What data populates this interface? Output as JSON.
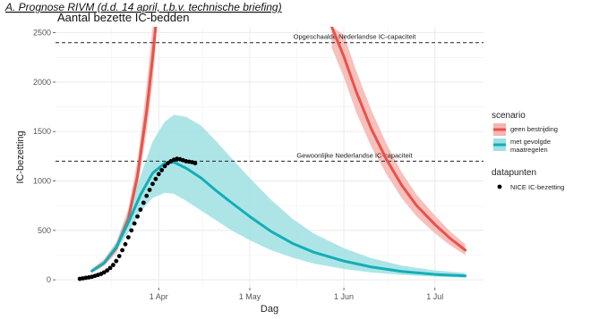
{
  "header": {
    "text": "A.   Prognose RIVM (d.d. 14 april, t.b.v. technische briefing)"
  },
  "chart_data": {
    "type": "line",
    "title": "Aantal bezette IC-bedden",
    "xlabel": "Dag",
    "ylabel": "IC-bezetting",
    "xlim": [
      "2020-02-27",
      "2020-07-17"
    ],
    "ylim": [
      -80,
      2560
    ],
    "x_ticks": [
      {
        "date": "2020-04-01",
        "label": "1 Apr"
      },
      {
        "date": "2020-05-01",
        "label": "1 May"
      },
      {
        "date": "2020-06-01",
        "label": "1 Jun"
      },
      {
        "date": "2020-07-01",
        "label": "1 Jul"
      }
    ],
    "y_ticks": [
      0,
      500,
      1000,
      1500,
      2000,
      2500
    ],
    "grid": true,
    "reference_lines": [
      {
        "y": 2400,
        "label": "Opgeschaalde Nederlandse IC-capaciteit"
      },
      {
        "y": 1200,
        "label": "Gewoonlijke Nederlandse IC-capaciteit"
      }
    ],
    "legend": {
      "placement": "right",
      "groups": [
        {
          "title": "scenario",
          "entries": [
            {
              "label": "geen bestrijding",
              "color": "#e8524a",
              "band": "#f6b5b0"
            },
            {
              "label": "met gevolgde maatregelen",
              "color": "#13aeb6",
              "band": "#9fe0e3"
            }
          ]
        },
        {
          "title": "datapunten",
          "entries": [
            {
              "label": "NICE IC-bezetting",
              "color": "#000000"
            }
          ]
        }
      ]
    },
    "series": [
      {
        "name": "geen bestrijding",
        "color": "#e8524a",
        "band_color": "#f6b5b0",
        "x": [
          "2020-03-10",
          "2020-03-14",
          "2020-03-18",
          "2020-03-22",
          "2020-03-25",
          "2020-03-28",
          "2020-03-30",
          "2020-03-31"
        ],
        "values": [
          90,
          170,
          320,
          620,
          1050,
          1700,
          2250,
          2560
        ],
        "lower": [
          70,
          140,
          270,
          540,
          920,
          1500,
          2000,
          2350
        ],
        "upper": [
          110,
          210,
          380,
          720,
          1200,
          1950,
          2560,
          2560
        ]
      },
      {
        "name": "geen bestrijding",
        "color": "#e8524a",
        "band_color": "#f6b5b0",
        "x": [
          "2020-05-28",
          "2020-06-01",
          "2020-06-05",
          "2020-06-10",
          "2020-06-15",
          "2020-06-20",
          "2020-06-25",
          "2020-07-01",
          "2020-07-06",
          "2020-07-11"
        ],
        "values": [
          2560,
          2260,
          1910,
          1530,
          1220,
          960,
          750,
          560,
          420,
          300
        ],
        "lower": [
          2350,
          2050,
          1700,
          1350,
          1070,
          830,
          640,
          470,
          350,
          250
        ],
        "upper": [
          2560,
          2480,
          2120,
          1720,
          1380,
          1090,
          860,
          650,
          490,
          360
        ]
      },
      {
        "name": "met gevolgde maatregelen",
        "color": "#13aeb6",
        "band_color": "#9fe0e3",
        "x": [
          "2020-03-10",
          "2020-03-14",
          "2020-03-18",
          "2020-03-22",
          "2020-03-26",
          "2020-03-30",
          "2020-04-03",
          "2020-04-06",
          "2020-04-10",
          "2020-04-15",
          "2020-04-20",
          "2020-04-25",
          "2020-05-01",
          "2020-05-08",
          "2020-05-15",
          "2020-05-22",
          "2020-06-01",
          "2020-06-10",
          "2020-06-20",
          "2020-07-01",
          "2020-07-11"
        ],
        "values": [
          90,
          170,
          330,
          580,
          860,
          1080,
          1180,
          1190,
          1130,
          1030,
          900,
          780,
          640,
          490,
          370,
          280,
          190,
          130,
          85,
          55,
          40
        ],
        "lower": [
          80,
          150,
          290,
          480,
          690,
          830,
          880,
          870,
          800,
          700,
          600,
          500,
          400,
          300,
          225,
          165,
          110,
          75,
          50,
          32,
          22
        ],
        "upper": [
          100,
          190,
          370,
          700,
          1050,
          1400,
          1600,
          1670,
          1650,
          1560,
          1400,
          1230,
          1030,
          810,
          620,
          470,
          320,
          220,
          145,
          95,
          70
        ]
      }
    ],
    "datapoints": {
      "name": "NICE IC-bezetting",
      "x": [
        "2020-03-06",
        "2020-03-07",
        "2020-03-08",
        "2020-03-09",
        "2020-03-10",
        "2020-03-11",
        "2020-03-12",
        "2020-03-13",
        "2020-03-14",
        "2020-03-15",
        "2020-03-16",
        "2020-03-17",
        "2020-03-18",
        "2020-03-19",
        "2020-03-20",
        "2020-03-21",
        "2020-03-22",
        "2020-03-23",
        "2020-03-24",
        "2020-03-25",
        "2020-03-26",
        "2020-03-27",
        "2020-03-28",
        "2020-03-29",
        "2020-03-30",
        "2020-03-31",
        "2020-04-01",
        "2020-04-02",
        "2020-04-03",
        "2020-04-04",
        "2020-04-05",
        "2020-04-06",
        "2020-04-07",
        "2020-04-08",
        "2020-04-09",
        "2020-04-10",
        "2020-04-11",
        "2020-04-12",
        "2020-04-13"
      ],
      "values": [
        10,
        15,
        20,
        25,
        30,
        40,
        50,
        60,
        75,
        95,
        120,
        150,
        190,
        240,
        300,
        360,
        430,
        500,
        570,
        640,
        710,
        780,
        850,
        910,
        970,
        1020,
        1070,
        1110,
        1150,
        1180,
        1200,
        1215,
        1225,
        1220,
        1210,
        1200,
        1195,
        1190,
        1180
      ]
    }
  }
}
